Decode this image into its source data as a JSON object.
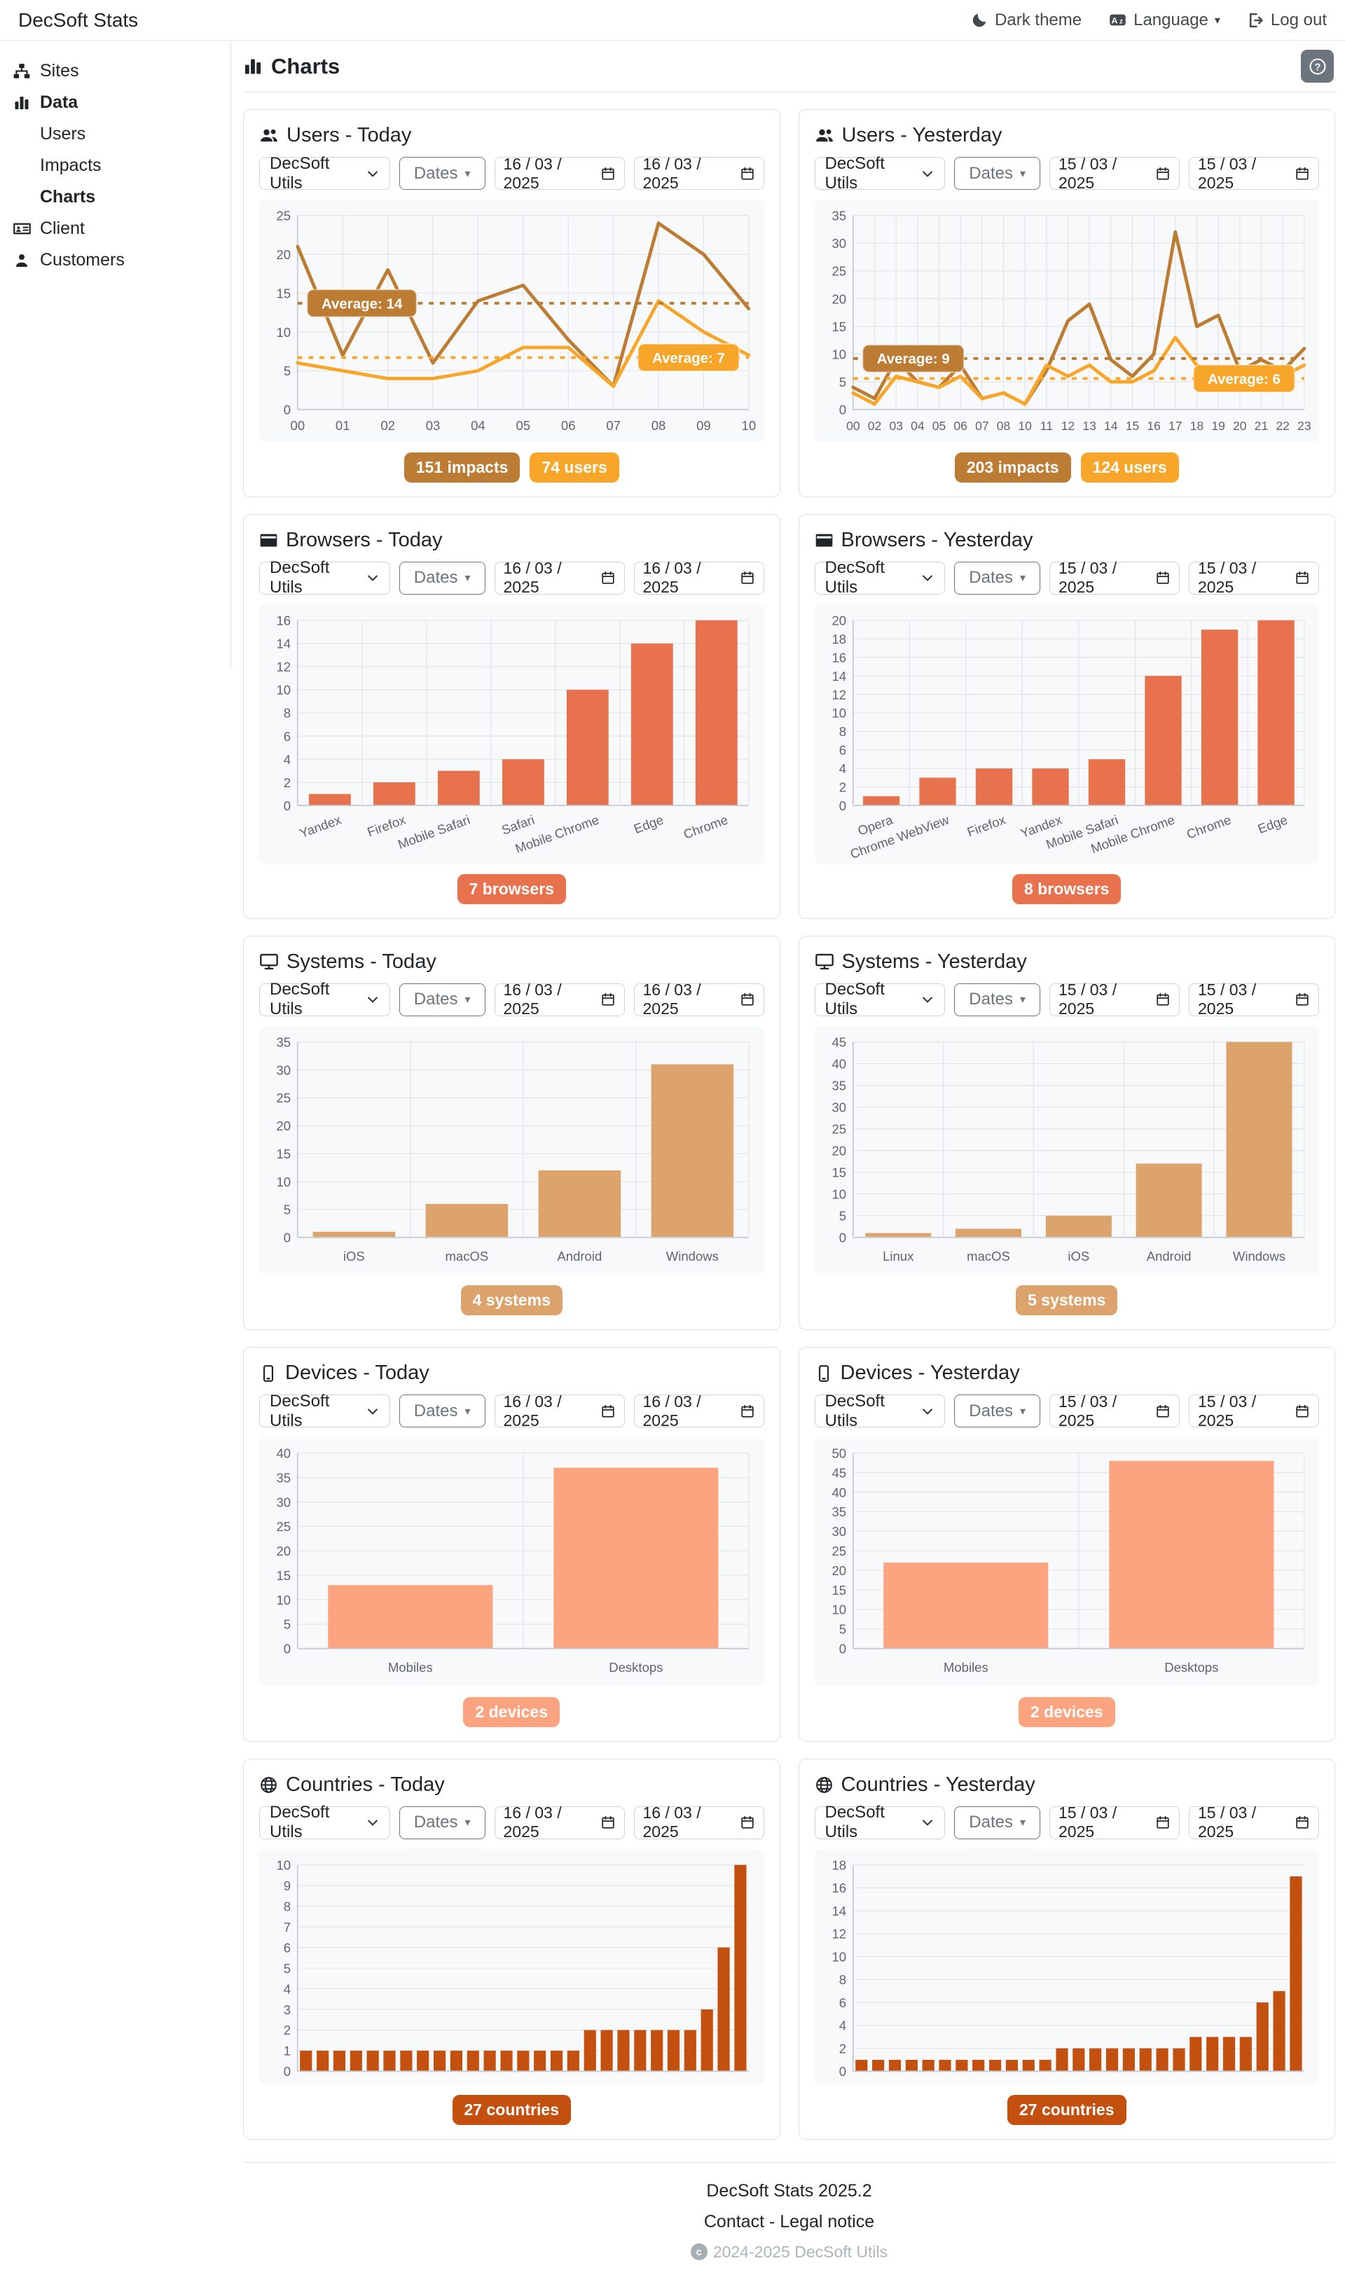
{
  "navbar": {
    "brand": "DecSoft Stats",
    "items": [
      {
        "label": "Dark theme",
        "icon": "moon-icon"
      },
      {
        "label": "Language",
        "icon": "translate-icon"
      },
      {
        "label": "Log out",
        "icon": "logout-icon"
      }
    ]
  },
  "sidebar": {
    "items": [
      {
        "label": "Sites",
        "icon": "sitemap-icon"
      },
      {
        "label": "Data",
        "icon": "bar-chart-icon",
        "bold": true
      },
      {
        "label": "Users",
        "indent": true
      },
      {
        "label": "Impacts",
        "indent": true
      },
      {
        "label": "Charts",
        "indent": true,
        "bold": true,
        "active": true
      },
      {
        "label": "Client",
        "icon": "id-card-icon"
      },
      {
        "label": "Customers",
        "icon": "person-icon"
      }
    ]
  },
  "page": {
    "title": "Charts",
    "icon": "bar-chart-icon",
    "help_icon": "question-icon"
  },
  "charts": [
    {
      "title": "Users - Today",
      "icon": "users-icon",
      "controls": {
        "site": "DecSoft Utils",
        "dates_label": "Dates",
        "date_from": "16/03/2025",
        "date_to": "16/03/2025"
      },
      "badges": [
        {
          "label": "151 impacts",
          "color": "#bd7c33"
        },
        {
          "label": "74 users",
          "color": "#f7a62a"
        }
      ],
      "chart_data": {
        "type": "line",
        "x": [
          "00",
          "01",
          "02",
          "03",
          "04",
          "05",
          "06",
          "07",
          "08",
          "09",
          "10"
        ],
        "series": [
          {
            "name": "impacts",
            "color": "#bd7c33",
            "values": [
              21,
              7,
              18,
              6,
              14,
              16,
              9,
              3,
              24,
              20,
              13
            ],
            "average_label": "Average: 14",
            "average_line": 13.7,
            "average_side": "left"
          },
          {
            "name": "users",
            "color": "#f7a62a",
            "values": [
              6,
              5,
              4,
              4,
              5,
              8,
              8,
              3,
              14,
              10,
              7
            ],
            "average_label": "Average: 7",
            "average_line": 6.7,
            "average_side": "right"
          }
        ],
        "ylim": [
          0,
          25
        ],
        "ytick": 5,
        "grid": true
      }
    },
    {
      "title": "Users - Yesterday",
      "icon": "users-icon",
      "controls": {
        "site": "DecSoft Utils",
        "dates_label": "Dates",
        "date_from": "15/03/2025",
        "date_to": "15/03/2025"
      },
      "badges": [
        {
          "label": "203 impacts",
          "color": "#bd7c33"
        },
        {
          "label": "124 users",
          "color": "#f7a62a"
        }
      ],
      "chart_data": {
        "type": "line",
        "x": [
          "00",
          "02",
          "03",
          "04",
          "05",
          "06",
          "07",
          "08",
          "10",
          "11",
          "12",
          "13",
          "14",
          "15",
          "16",
          "17",
          "18",
          "19",
          "20",
          "21",
          "22",
          "23"
        ],
        "series": [
          {
            "name": "impacts",
            "color": "#bd7c33",
            "values": [
              4,
              2,
              9,
              5,
              4,
              8,
              2,
              3,
              1,
              7,
              16,
              19,
              9,
              6,
              10,
              32,
              15,
              17,
              7,
              9,
              7,
              11
            ],
            "average_label": "Average: 9",
            "average_line": 9.2,
            "average_side": "left"
          },
          {
            "name": "users",
            "color": "#f7a62a",
            "values": [
              3,
              1,
              6,
              5,
              4,
              6,
              2,
              3,
              1,
              8,
              6,
              8,
              5,
              5,
              7,
              13,
              8,
              7,
              6,
              6,
              6,
              8
            ],
            "average_label": "Average: 6",
            "average_line": 5.6,
            "average_side": "right"
          }
        ],
        "ylim": [
          0,
          35
        ],
        "ytick": 5,
        "grid": true
      }
    },
    {
      "title": "Browsers - Today",
      "icon": "browser-icon",
      "controls": {
        "site": "DecSoft Utils",
        "dates_label": "Dates",
        "date_from": "16/03/2025",
        "date_to": "16/03/2025"
      },
      "badges": [
        {
          "label": "7 browsers",
          "color": "#e8714e"
        }
      ],
      "chart_data": {
        "type": "bar",
        "categories": [
          "Yandex",
          "Firefox",
          "Mobile Safari",
          "Safari",
          "Mobile Chrome",
          "Edge",
          "Chrome"
        ],
        "values": [
          1,
          2,
          3,
          4,
          10,
          14,
          16
        ],
        "bar_color": "#e8714e",
        "ylim": [
          0,
          16
        ],
        "ytick": 2,
        "x_label_rotation": -20,
        "grid": true
      }
    },
    {
      "title": "Browsers - Yesterday",
      "icon": "browser-icon",
      "controls": {
        "site": "DecSoft Utils",
        "dates_label": "Dates",
        "date_from": "15/03/2025",
        "date_to": "15/03/2025"
      },
      "badges": [
        {
          "label": "8 browsers",
          "color": "#e8714e"
        }
      ],
      "chart_data": {
        "type": "bar",
        "categories": [
          "Opera",
          "Chrome WebView",
          "Firefox",
          "Yandex",
          "Mobile Safari",
          "Mobile Chrome",
          "Chrome",
          "Edge"
        ],
        "values": [
          1,
          3,
          4,
          4,
          5,
          14,
          19,
          20
        ],
        "bar_color": "#e8714e",
        "ylim": [
          0,
          20
        ],
        "ytick": 2,
        "x_label_rotation": -20,
        "grid": true
      }
    },
    {
      "title": "Systems - Today",
      "icon": "monitor-icon",
      "controls": {
        "site": "DecSoft Utils",
        "dates_label": "Dates",
        "date_from": "16/03/2025",
        "date_to": "16/03/2025"
      },
      "badges": [
        {
          "label": "4 systems",
          "color": "#dca46c"
        }
      ],
      "chart_data": {
        "type": "bar",
        "categories": [
          "iOS",
          "macOS",
          "Android",
          "Windows"
        ],
        "values": [
          1,
          6,
          12,
          31
        ],
        "bar_color": "#dca46c",
        "ylim": [
          0,
          35
        ],
        "ytick": 5,
        "x_label_rotation": 0,
        "grid": true
      }
    },
    {
      "title": "Systems - Yesterday",
      "icon": "monitor-icon",
      "controls": {
        "site": "DecSoft Utils",
        "dates_label": "Dates",
        "date_from": "15/03/2025",
        "date_to": "15/03/2025"
      },
      "badges": [
        {
          "label": "5 systems",
          "color": "#dca46c"
        }
      ],
      "chart_data": {
        "type": "bar",
        "categories": [
          "Linux",
          "macOS",
          "iOS",
          "Android",
          "Windows"
        ],
        "values": [
          1,
          2,
          5,
          17,
          45
        ],
        "bar_color": "#dca46c",
        "ylim": [
          0,
          45
        ],
        "ytick": 5,
        "x_label_rotation": 0,
        "grid": true
      }
    },
    {
      "title": "Devices - Today",
      "icon": "phone-icon",
      "controls": {
        "site": "DecSoft Utils",
        "dates_label": "Dates",
        "date_from": "16/03/2025",
        "date_to": "16/03/2025"
      },
      "badges": [
        {
          "label": "2 devices",
          "color": "#fca480"
        }
      ],
      "chart_data": {
        "type": "bar",
        "categories": [
          "Mobiles",
          "Desktops"
        ],
        "values": [
          13,
          37
        ],
        "bar_color": "#fca480",
        "ylim": [
          0,
          40
        ],
        "ytick": 5,
        "x_label_rotation": 0,
        "grid": true
      }
    },
    {
      "title": "Devices - Yesterday",
      "icon": "phone-icon",
      "controls": {
        "site": "DecSoft Utils",
        "dates_label": "Dates",
        "date_from": "15/03/2025",
        "date_to": "15/03/2025"
      },
      "badges": [
        {
          "label": "2 devices",
          "color": "#fca480"
        }
      ],
      "chart_data": {
        "type": "bar",
        "categories": [
          "Mobiles",
          "Desktops"
        ],
        "values": [
          22,
          48
        ],
        "bar_color": "#fca480",
        "ylim": [
          0,
          50
        ],
        "ytick": 5,
        "x_label_rotation": 0,
        "grid": true
      }
    },
    {
      "title": "Countries - Today",
      "icon": "globe-icon",
      "controls": {
        "site": "DecSoft Utils",
        "dates_label": "Dates",
        "date_from": "16/03/2025",
        "date_to": "16/03/2025"
      },
      "badges": [
        {
          "label": "27 countries",
          "color": "#c4500f"
        }
      ],
      "chart_data": {
        "type": "bar",
        "categories": [],
        "values": [
          1,
          1,
          1,
          1,
          1,
          1,
          1,
          1,
          1,
          1,
          1,
          1,
          1,
          1,
          1,
          1,
          1,
          2,
          2,
          2,
          2,
          2,
          2,
          2,
          3,
          6,
          10
        ],
        "bar_color": "#c4500f",
        "ylim": [
          0,
          10
        ],
        "ytick": 1,
        "x_label_rotation": 0,
        "grid": true
      }
    },
    {
      "title": "Countries - Yesterday",
      "icon": "globe-icon",
      "controls": {
        "site": "DecSoft Utils",
        "dates_label": "Dates",
        "date_from": "15/03/2025",
        "date_to": "15/03/2025"
      },
      "badges": [
        {
          "label": "27 countries",
          "color": "#c4500f"
        }
      ],
      "chart_data": {
        "type": "bar",
        "categories": [],
        "values": [
          1,
          1,
          1,
          1,
          1,
          1,
          1,
          1,
          1,
          1,
          1,
          1,
          2,
          2,
          2,
          2,
          2,
          2,
          2,
          2,
          3,
          3,
          3,
          3,
          6,
          7,
          17
        ],
        "bar_color": "#c4500f",
        "ylim": [
          0,
          18
        ],
        "ytick": 2,
        "x_label_rotation": 0,
        "grid": true
      }
    }
  ],
  "footer": {
    "version": "DecSoft Stats 2025.2",
    "links": [
      {
        "label": "Contact"
      },
      {
        "label": "Legal notice"
      }
    ],
    "links_separator": "-",
    "copyright_icon": "copyright-icon",
    "copyright": "2024-2025 DecSoft Utils"
  }
}
